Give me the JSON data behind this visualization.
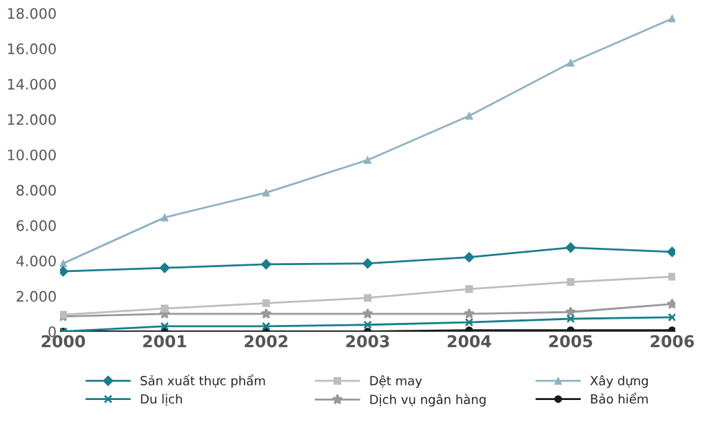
{
  "chart_data": {
    "type": "line",
    "categories": [
      "2000",
      "2001",
      "2002",
      "2003",
      "2004",
      "2005",
      "2006"
    ],
    "series": [
      {
        "name": "Sản xuất thực phẩm",
        "color": "#1b7d8c",
        "marker": "diamond",
        "values": [
          3400,
          3600,
          3800,
          3850,
          4200,
          4750,
          4500
        ]
      },
      {
        "name": "Dệt may",
        "color": "#bdbdbd",
        "marker": "square",
        "values": [
          950,
          1300,
          1600,
          1900,
          2400,
          2800,
          3100
        ]
      },
      {
        "name": "Xây dựng",
        "color": "#8fb2c2",
        "marker": "triangle",
        "values": [
          3850,
          6450,
          7850,
          9700,
          12200,
          15200,
          17700
        ]
      },
      {
        "name": "Du lịch",
        "color": "#177f8b",
        "marker": "cross",
        "values": [
          0,
          300,
          300,
          380,
          520,
          720,
          800
        ]
      },
      {
        "name": "Dịch vụ ngân hàng",
        "color": "#999999",
        "marker": "star",
        "values": [
          850,
          1000,
          1000,
          1000,
          1000,
          1100,
          1550
        ]
      },
      {
        "name": "Bảo hiểm",
        "color": "#1a1a1a",
        "marker": "circle",
        "values": [
          0,
          0,
          0,
          0,
          70,
          70,
          70
        ]
      }
    ],
    "ylim": [
      0,
      18000
    ],
    "yticks": [
      0,
      {
        "value": 2000,
        "label": "2.000"
      },
      {
        "value": 4000,
        "label": "4.000"
      },
      {
        "value": 6000,
        "label": "6.000"
      },
      {
        "value": 8000,
        "label": "8.000"
      },
      {
        "value": 10000,
        "label": "10.000"
      },
      {
        "value": 12000,
        "label": "12.000"
      },
      {
        "value": 14000,
        "label": "14.000"
      },
      {
        "value": 16000,
        "label": "16.000"
      },
      {
        "value": 18000,
        "label": "18.000"
      }
    ],
    "grid": false,
    "legend": "bottom",
    "line_style": "solid"
  }
}
